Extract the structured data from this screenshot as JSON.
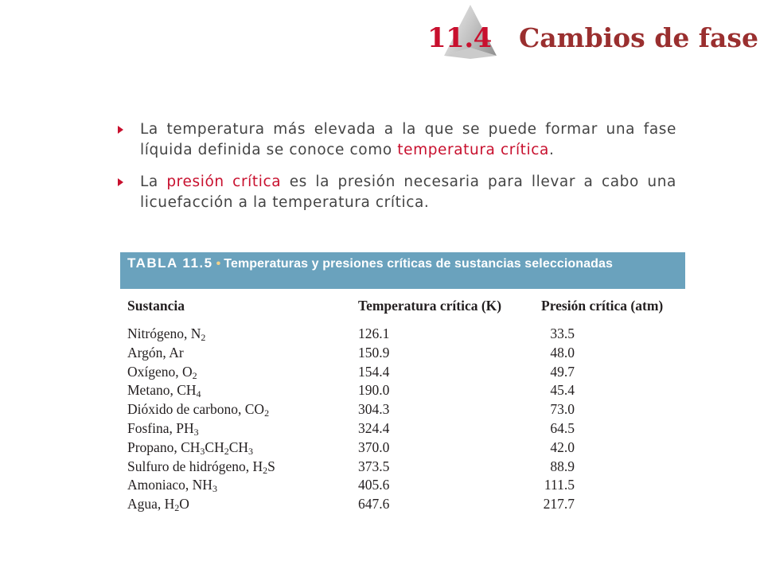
{
  "header": {
    "section_number": "11.4",
    "section_title": "Cambios de fase"
  },
  "bullets": [
    {
      "text_before": "La temperatura más elevada a la que se puede formar una fase líquida definida se conoce como ",
      "term": "temperatura crítica",
      "text_after": "."
    },
    {
      "text_before": "La ",
      "term": "presión crítica",
      "text_after": " es la presión necesaria para llevar a cabo una licuefacción a la temperatura crítica."
    }
  ],
  "table": {
    "label": "TABLA 11.5",
    "caption": "Temperaturas y presiones críticas de sustancias seleccionadas",
    "columns": [
      "Sustancia",
      "Temperatura crítica (K)",
      "Presión crítica (atm)"
    ],
    "rows": [
      {
        "name": "Nitrógeno, ",
        "formula": [
          [
            "N",
            ""
          ],
          [
            "",
            "2"
          ]
        ],
        "temperature": "126.1",
        "pressure": "33.5"
      },
      {
        "name": "Argón, ",
        "formula": [
          [
            "Ar",
            ""
          ]
        ],
        "temperature": "150.9",
        "pressure": "48.0"
      },
      {
        "name": "Oxígeno, ",
        "formula": [
          [
            "O",
            ""
          ],
          [
            "",
            "2"
          ]
        ],
        "temperature": "154.4",
        "pressure": "49.7"
      },
      {
        "name": "Metano, ",
        "formula": [
          [
            "CH",
            ""
          ],
          [
            "",
            "4"
          ]
        ],
        "temperature": "190.0",
        "pressure": "45.4"
      },
      {
        "name": "Dióxido de carbono, ",
        "formula": [
          [
            "CO",
            ""
          ],
          [
            "",
            "2"
          ]
        ],
        "temperature": "304.3",
        "pressure": "73.0"
      },
      {
        "name": "Fosfina, ",
        "formula": [
          [
            "PH",
            ""
          ],
          [
            "",
            "3"
          ]
        ],
        "temperature": "324.4",
        "pressure": "64.5"
      },
      {
        "name": "Propano, ",
        "formula": [
          [
            "CH",
            ""
          ],
          [
            "",
            "3"
          ],
          [
            "CH",
            ""
          ],
          [
            "",
            "2"
          ],
          [
            "CH",
            ""
          ],
          [
            "",
            "3"
          ]
        ],
        "temperature": "370.0",
        "pressure": "42.0"
      },
      {
        "name": "Sulfuro de hidrógeno, ",
        "formula": [
          [
            "H",
            ""
          ],
          [
            "",
            "2"
          ],
          [
            "S",
            ""
          ]
        ],
        "temperature": "373.5",
        "pressure": "88.9"
      },
      {
        "name": "Amoniaco, ",
        "formula": [
          [
            "NH",
            ""
          ],
          [
            "",
            "3"
          ]
        ],
        "temperature": "405.6",
        "pressure": "111.5"
      },
      {
        "name": "Agua, ",
        "formula": [
          [
            "H",
            ""
          ],
          [
            "",
            "2"
          ],
          [
            "O",
            ""
          ]
        ],
        "temperature": "647.6",
        "pressure": "217.7"
      }
    ]
  },
  "colors": {
    "accent_red": "#c8102e",
    "title_red": "#9a2f2f",
    "table_header_blue": "#6aa2bd"
  }
}
